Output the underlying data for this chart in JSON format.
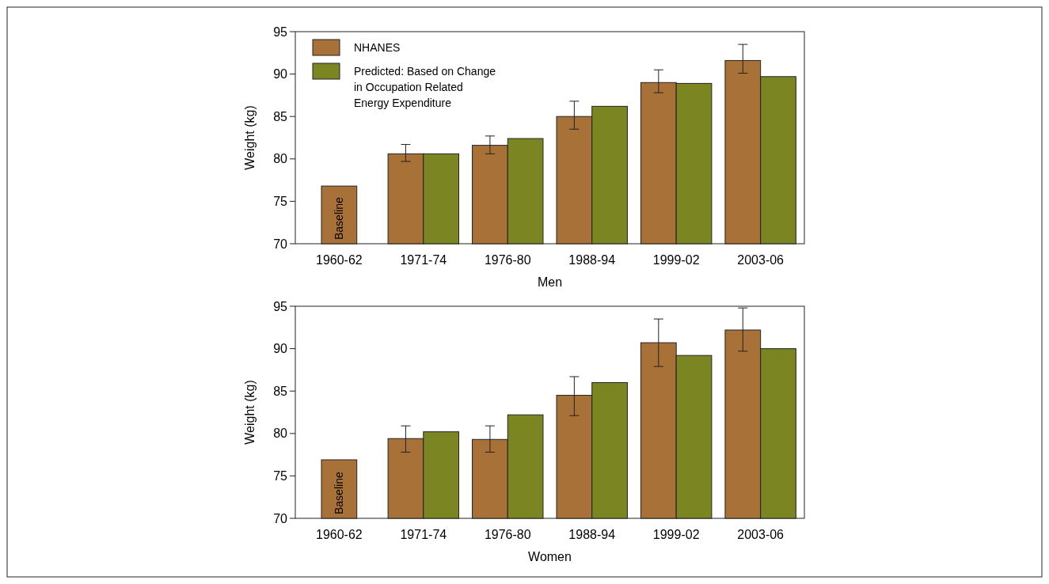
{
  "chart_data": [
    {
      "type": "bar",
      "xlabel": "Men",
      "ylabel": "Weight (kg)",
      "categories": [
        "1960-62",
        "1971-74",
        "1976-80",
        "1988-94",
        "1999-02",
        "2003-06"
      ],
      "ylim": [
        70,
        95
      ],
      "yticks": [
        70,
        75,
        80,
        85,
        90,
        95
      ],
      "legend": "top left",
      "annotations": [
        "Baseline"
      ],
      "series": [
        {
          "name": "NHANES",
          "color": "#a87137",
          "values": [
            76.8,
            80.6,
            81.6,
            85.0,
            89.0,
            91.6
          ],
          "errors": [
            null,
            [
              79.7,
              81.7
            ],
            [
              80.6,
              82.7
            ],
            [
              83.5,
              86.8
            ],
            [
              87.8,
              90.5
            ],
            [
              90.1,
              93.5
            ]
          ]
        },
        {
          "name": "Predicted: Based on Change in Occupation Related Energy Expenditure",
          "color": "#7b8622",
          "values": [
            null,
            80.6,
            82.4,
            86.2,
            88.9,
            89.7
          ]
        }
      ]
    },
    {
      "type": "bar",
      "xlabel": "Women",
      "ylabel": "Weight (kg)",
      "categories": [
        "1960-62",
        "1971-74",
        "1976-80",
        "1988-94",
        "1999-02",
        "2003-06"
      ],
      "ylim": [
        70,
        95
      ],
      "yticks": [
        70,
        75,
        80,
        85,
        90,
        95
      ],
      "legend": false,
      "annotations": [
        "Baseline"
      ],
      "series": [
        {
          "color": "#a87137",
          "values": [
            76.9,
            79.4,
            79.3,
            84.5,
            90.7,
            92.2
          ],
          "errors": [
            null,
            [
              77.8,
              80.9
            ],
            [
              77.8,
              80.9
            ],
            [
              82.1,
              86.7
            ],
            [
              87.9,
              93.5
            ],
            [
              89.7,
              94.8
            ]
          ]
        },
        {
          "color": "#7b8622",
          "values": [
            null,
            80.2,
            82.2,
            86.0,
            89.2,
            90.0
          ]
        }
      ]
    }
  ]
}
